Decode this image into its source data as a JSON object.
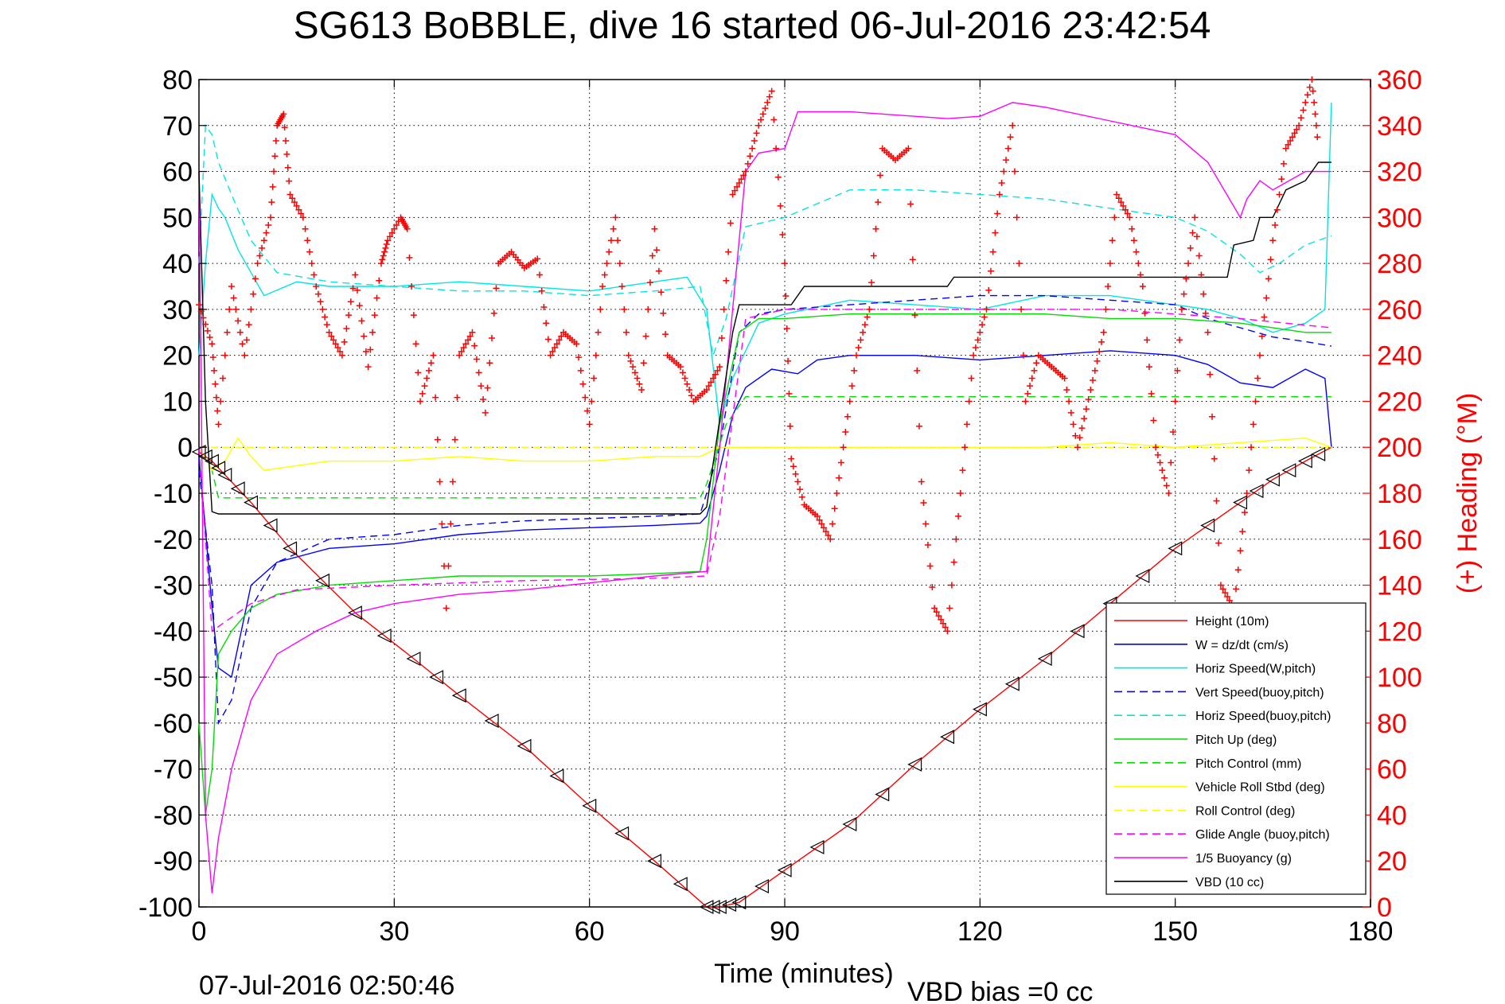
{
  "title": "SG613 BoBBLE, dive 16 started 06-Jul-2016 23:42:54",
  "footer": {
    "timestamp": "07-Jul-2016 02:50:46",
    "vbd_bias": "VBD bias =0 cc"
  },
  "colors": {
    "red": "#ff0000",
    "blue": "#0000ff",
    "cyan": "#00e5e5",
    "green": "#00dd00",
    "yellow": "#ffff00",
    "magenta": "#ff00ff",
    "black": "#000000"
  },
  "chart_data": {
    "type": "line",
    "title": "SG613 BoBBLE, dive 16 started 06-Jul-2016 23:42:54",
    "xlabel": "Time (minutes)",
    "ylabel": "",
    "y2label": "(+) Heading (°M)",
    "xlim": [
      0,
      180
    ],
    "ylim": [
      -100,
      80
    ],
    "y2lim": [
      0,
      360
    ],
    "xticks": [
      "0",
      "30",
      "60",
      "90",
      "120",
      "150",
      "180"
    ],
    "yticks": [
      "80",
      "70",
      "60",
      "50",
      "40",
      "30",
      "20",
      "10",
      "0",
      "-10",
      "-20",
      "-30",
      "-40",
      "-50",
      "-60",
      "-70",
      "-80",
      "-90",
      "-100"
    ],
    "y2ticks": [
      "360",
      "340",
      "320",
      "300",
      "280",
      "260",
      "240",
      "220",
      "200",
      "180",
      "160",
      "140",
      "120",
      "100",
      "80",
      "60",
      "40",
      "20",
      "0"
    ],
    "grid": true,
    "legend_position": "bottom-right",
    "legend": [
      {
        "label": "Height (10m)",
        "color": "#ff0000",
        "dash": "solid"
      },
      {
        "label": "W = dz/dt (cm/s)",
        "color": "#0000ff",
        "dash": "solid"
      },
      {
        "label": "Horiz Speed(W,pitch)",
        "color": "#00e5e5",
        "dash": "solid"
      },
      {
        "label": "Vert Speed(buoy,pitch)",
        "color": "#0000ff",
        "dash": "dashed"
      },
      {
        "label": "Horiz Speed(buoy,pitch)",
        "color": "#00e5e5",
        "dash": "dashed"
      },
      {
        "label": "Pitch Up (deg)",
        "color": "#00dd00",
        "dash": "solid"
      },
      {
        "label": "Pitch Control (mm)",
        "color": "#00dd00",
        "dash": "dashed"
      },
      {
        "label": "Vehicle Roll Stbd (deg)",
        "color": "#ffff00",
        "dash": "solid"
      },
      {
        "label": "Roll Control (deg)",
        "color": "#ffff00",
        "dash": "dashed"
      },
      {
        "label": "Glide Angle (buoy,pitch)",
        "color": "#ff00ff",
        "dash": "dashed"
      },
      {
        "label": "1/5 Buoyancy (g)",
        "color": "#ff00ff",
        "dash": "solid"
      },
      {
        "label": "VBD (10 cc)",
        "color": "#000000",
        "dash": "solid"
      }
    ],
    "series": [
      {
        "name": "Height (10m)",
        "axis": "left",
        "color": "#ff0000",
        "dash": "solid",
        "x": [
          0,
          2,
          4,
          8,
          14,
          24,
          33,
          40,
          50,
          60,
          70,
          78,
          80,
          83,
          90,
          100,
          110,
          120,
          130,
          140,
          150,
          160,
          165,
          170,
          174
        ],
        "y": [
          -1,
          -3,
          -6,
          -12,
          -22,
          -36,
          -46,
          -54,
          -65,
          -78,
          -90,
          -100,
          -100,
          -99,
          -92,
          -82,
          -69,
          -57,
          -46,
          -34,
          -22,
          -12,
          -7,
          -3,
          0
        ]
      },
      {
        "name": "W = dz/dt (cm/s)",
        "axis": "left",
        "color": "#0000ff",
        "dash": "solid",
        "x": [
          0,
          1,
          2,
          3,
          5,
          8,
          12,
          20,
          30,
          40,
          50,
          60,
          70,
          77,
          78,
          80,
          82,
          84,
          88,
          92,
          95,
          100,
          110,
          120,
          130,
          140,
          150,
          155,
          160,
          165,
          170,
          173,
          174
        ],
        "y": [
          -2,
          -18,
          -35,
          -48,
          -50,
          -30,
          -25,
          -22,
          -21,
          -19,
          -18,
          -17.5,
          -17,
          -16.5,
          -15,
          -5,
          7,
          13,
          17,
          16,
          19,
          20,
          20,
          19,
          20,
          21,
          20,
          18,
          14,
          13,
          17,
          15,
          0
        ]
      },
      {
        "name": "Horiz Speed(W,pitch)",
        "axis": "left",
        "color": "#00e5e5",
        "dash": "solid",
        "x": [
          0,
          1,
          2,
          3,
          4,
          6,
          8,
          10,
          15,
          20,
          30,
          40,
          50,
          60,
          70,
          75,
          78,
          80,
          82,
          86,
          90,
          100,
          110,
          120,
          130,
          140,
          150,
          155,
          160,
          165,
          170,
          173,
          174
        ],
        "y": [
          20,
          40,
          55,
          52,
          50,
          43,
          38,
          33,
          36,
          35,
          35,
          36,
          35,
          34,
          36,
          37,
          30,
          5,
          15,
          27,
          29,
          32,
          31,
          30,
          33,
          33,
          31,
          30,
          28,
          25,
          27,
          30,
          75
        ]
      },
      {
        "name": "Vert Speed(buoy,pitch)",
        "axis": "left",
        "color": "#0000ff",
        "dash": "dashed",
        "x": [
          0,
          2,
          3,
          5,
          8,
          12,
          20,
          30,
          40,
          50,
          60,
          70,
          77,
          78,
          80,
          83,
          86,
          90,
          100,
          110,
          120,
          130,
          140,
          150,
          155,
          160,
          165,
          170,
          174
        ],
        "y": [
          -5,
          -30,
          -60,
          -55,
          -35,
          -25,
          -20,
          -19,
          -17,
          -16,
          -15.5,
          -15,
          -14.5,
          -10,
          0,
          25,
          29,
          30,
          31,
          32,
          33,
          33,
          32,
          31,
          28,
          26,
          24,
          23,
          22
        ]
      },
      {
        "name": "Horiz Speed(buoy,pitch)",
        "axis": "left",
        "color": "#00e5e5",
        "dash": "dashed",
        "x": [
          0,
          1,
          2,
          3,
          5,
          8,
          12,
          20,
          30,
          40,
          50,
          60,
          70,
          77,
          79,
          81,
          84,
          90,
          100,
          110,
          120,
          130,
          140,
          150,
          155,
          160,
          163,
          166,
          170,
          174
        ],
        "y": [
          40,
          70,
          68,
          62,
          55,
          45,
          38,
          36,
          35,
          34,
          34,
          33,
          34,
          35,
          20,
          28,
          48,
          50,
          56,
          56,
          55,
          54,
          52,
          50,
          47,
          42,
          38,
          40,
          44,
          46
        ]
      },
      {
        "name": "Pitch Up (deg)",
        "axis": "left",
        "color": "#00dd00",
        "dash": "solid",
        "x": [
          0,
          1,
          2,
          3,
          5,
          8,
          12,
          20,
          30,
          40,
          50,
          60,
          70,
          77,
          78,
          80,
          83,
          86,
          90,
          100,
          110,
          120,
          130,
          140,
          150,
          160,
          170,
          174
        ],
        "y": [
          -60,
          -80,
          -70,
          -45,
          -40,
          -35,
          -32,
          -30,
          -29,
          -28,
          -28,
          -28,
          -27.5,
          -27,
          -20,
          5,
          25,
          28,
          28,
          29,
          29,
          29,
          29,
          28,
          28,
          27,
          25,
          25
        ]
      },
      {
        "name": "Pitch Control (mm)",
        "axis": "left",
        "color": "#00dd00",
        "dash": "dashed",
        "x": [
          0,
          2,
          3,
          77,
          78,
          81,
          84,
          174
        ],
        "y": [
          0,
          -5,
          -11,
          -11,
          -8,
          5,
          11,
          11
        ]
      },
      {
        "name": "Vehicle Roll Stbd (deg)",
        "axis": "left",
        "color": "#ffff00",
        "dash": "solid",
        "x": [
          0,
          2,
          4,
          6,
          8,
          10,
          15,
          20,
          30,
          40,
          50,
          60,
          70,
          77,
          80,
          90,
          100,
          110,
          120,
          130,
          140,
          150,
          160,
          170,
          174
        ],
        "y": [
          0,
          -5,
          -3,
          2,
          -2,
          -5,
          -4,
          -3,
          -3,
          -2,
          -3,
          -3,
          -2,
          -2,
          0,
          0,
          0,
          0,
          0,
          0,
          1,
          0,
          1,
          2,
          0
        ]
      },
      {
        "name": "Roll Control (deg)",
        "axis": "left",
        "color": "#ffff00",
        "dash": "dashed",
        "x": [
          0,
          174
        ],
        "y": [
          0,
          0
        ]
      },
      {
        "name": "Glide Angle (buoy,pitch)",
        "axis": "left",
        "color": "#ff00ff",
        "dash": "dashed",
        "x": [
          0,
          2,
          4,
          8,
          15,
          30,
          50,
          70,
          78,
          80,
          84,
          90,
          100,
          120,
          140,
          160,
          174
        ],
        "y": [
          0,
          -40,
          -38,
          -34,
          -31,
          -30,
          -29,
          -28.5,
          -28,
          -15,
          28,
          30,
          30,
          30,
          30,
          28,
          26
        ]
      },
      {
        "name": "1/5 Buoyancy (g)",
        "axis": "left",
        "color": "#ff00ff",
        "dash": "solid",
        "x": [
          0,
          1,
          2,
          3,
          5,
          8,
          12,
          18,
          24,
          30,
          40,
          50,
          60,
          70,
          78,
          80,
          84,
          86,
          90,
          92,
          100,
          110,
          115,
          120,
          125,
          130,
          140,
          150,
          155,
          160,
          161,
          163,
          165,
          170,
          174
        ],
        "y": [
          60,
          -80,
          -97,
          -85,
          -70,
          -55,
          -45,
          -40,
          -36,
          -34,
          -32,
          -31,
          -29.5,
          -28,
          -27,
          0,
          60,
          64,
          65,
          73,
          73,
          72,
          71.5,
          72,
          75,
          74,
          71,
          68,
          62,
          50,
          54,
          58,
          56,
          60,
          60
        ]
      },
      {
        "name": "VBD (10 cc)",
        "axis": "left",
        "color": "#000000",
        "dash": "solid",
        "x": [
          0,
          1,
          2,
          3,
          77,
          78,
          82,
          83,
          91,
          93,
          115,
          116,
          133,
          134,
          158,
          159,
          162,
          163,
          165,
          167,
          170,
          172,
          174
        ],
        "y": [
          60,
          10,
          -14,
          -14.5,
          -14.5,
          -13,
          25,
          31,
          31,
          35,
          35,
          37,
          37,
          37,
          37,
          44,
          45,
          50,
          50,
          56,
          58,
          62,
          62
        ]
      },
      {
        "name": "(+) Heading (°M)",
        "axis": "right",
        "color": "#ff0000",
        "marker": "+",
        "x": [
          0,
          2,
          3,
          5,
          7,
          9,
          11,
          12,
          13,
          14,
          16,
          18,
          20,
          22,
          24,
          26,
          28,
          29,
          31,
          32,
          34,
          36,
          38,
          40,
          42,
          44,
          46,
          48,
          50,
          52,
          54,
          56,
          58,
          60,
          62,
          64,
          66,
          68,
          70,
          72,
          74,
          76,
          78,
          80,
          82,
          84,
          86,
          88,
          90,
          91,
          93,
          95,
          97,
          99,
          101,
          103,
          105,
          107,
          109,
          111,
          113,
          115,
          117,
          119,
          121,
          123,
          125,
          127,
          129,
          131,
          133,
          135,
          137,
          139,
          141,
          143,
          145,
          147,
          149,
          151,
          153,
          155,
          157,
          159,
          161,
          163,
          165,
          167,
          169,
          171,
          172
        ],
        "y": [
          262,
          245,
          210,
          270,
          240,
          280,
          300,
          340,
          345,
          310,
          300,
          270,
          250,
          240,
          275,
          235,
          280,
          290,
          300,
          295,
          220,
          240,
          130,
          240,
          250,
          215,
          280,
          285,
          278,
          282,
          240,
          250,
          245,
          210,
          270,
          300,
          240,
          225,
          295,
          240,
          235,
          220,
          225,
          235,
          310,
          320,
          340,
          355,
          280,
          195,
          175,
          170,
          160,
          200,
          240,
          260,
          330,
          325,
          330,
          185,
          130,
          120,
          180,
          240,
          260,
          310,
          340,
          220,
          240,
          235,
          230,
          200,
          225,
          250,
          310,
          300,
          270,
          200,
          180,
          260,
          300,
          250,
          140,
          130,
          180,
          240,
          290,
          330,
          340,
          360,
          330
        ]
      }
    ]
  }
}
